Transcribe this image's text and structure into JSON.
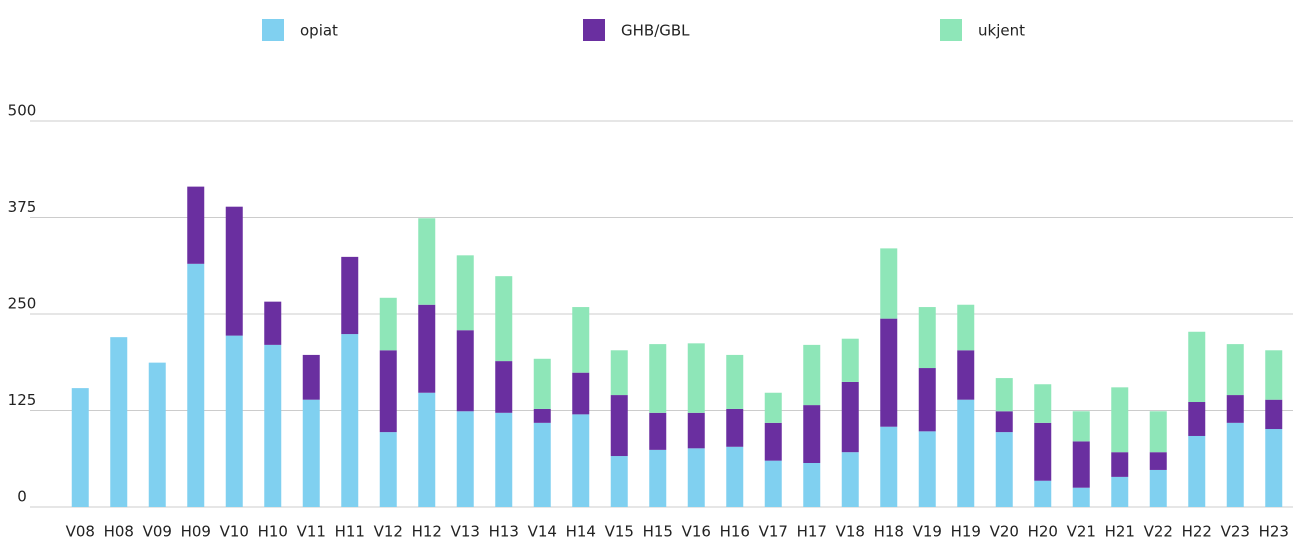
{
  "chart_data": {
    "type": "stacked_bar",
    "categories": [
      "V08",
      "H08",
      "V09",
      "H09",
      "V10",
      "H10",
      "V11",
      "H11",
      "V12",
      "H12",
      "V13",
      "H13",
      "V14",
      "H14",
      "V15",
      "H15",
      "V16",
      "H16",
      "V17",
      "H17",
      "V18",
      "H18",
      "V19",
      "H19",
      "V20",
      "H20",
      "V21",
      "H21",
      "V22",
      "H22",
      "V23",
      "H23"
    ],
    "series": [
      {
        "name": "opiat",
        "color": "#80d0f0",
        "values": [
          154,
          220,
          187,
          315,
          222,
          210,
          139,
          224,
          97,
          148,
          124,
          122,
          109,
          120,
          66,
          74,
          76,
          78,
          60,
          57,
          71,
          104,
          98,
          139,
          97,
          34,
          25,
          39,
          48,
          92,
          109,
          101
        ]
      },
      {
        "name": "GHB/GBL",
        "color": "#6a2fa0",
        "values": [
          0,
          0,
          0,
          100,
          167,
          56,
          58,
          100,
          106,
          114,
          105,
          67,
          18,
          54,
          79,
          48,
          46,
          49,
          49,
          75,
          91,
          140,
          82,
          64,
          27,
          75,
          60,
          32,
          23,
          44,
          36,
          38
        ]
      },
      {
        "name": "ukjent",
        "color": "#8ee6b8",
        "values": [
          0,
          0,
          0,
          0,
          0,
          0,
          0,
          0,
          68,
          112,
          97,
          110,
          65,
          85,
          58,
          89,
          90,
          70,
          39,
          78,
          56,
          91,
          79,
          59,
          43,
          50,
          39,
          84,
          53,
          91,
          66,
          64
        ]
      }
    ],
    "ylim": [
      0,
      500
    ],
    "yticks": [
      0,
      125,
      250,
      375,
      500
    ],
    "grid": true,
    "legend": "top"
  }
}
